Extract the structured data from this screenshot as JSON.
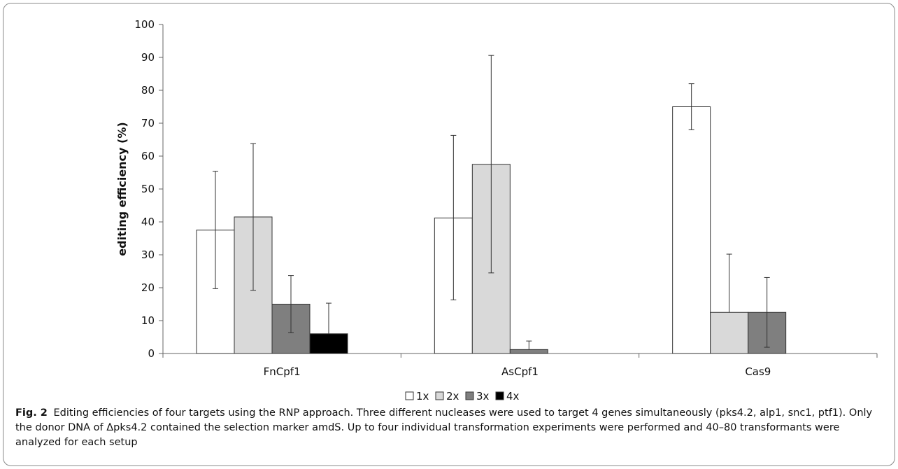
{
  "chart_data": {
    "type": "bar",
    "ylabel": "editing efficiency (%)",
    "xlabel": "",
    "ylim": [
      0,
      100
    ],
    "yticks": [
      0,
      10,
      20,
      30,
      40,
      50,
      60,
      70,
      80,
      90,
      100
    ],
    "categories": [
      "FnCpf1",
      "AsCpf1",
      "Cas9"
    ],
    "legend_position": "bottom",
    "grid": false,
    "series": [
      {
        "name": "1x",
        "color": "#ffffff",
        "values": [
          37.5,
          41.2,
          75.0
        ],
        "err_low": [
          19.7,
          16.3,
          68.0
        ],
        "err_high": [
          55.4,
          66.3,
          82.0
        ]
      },
      {
        "name": "2x",
        "color": "#d9d9d9",
        "values": [
          41.5,
          57.5,
          12.5
        ],
        "err_low": [
          19.2,
          24.5,
          null
        ],
        "err_high": [
          63.8,
          90.6,
          30.2
        ]
      },
      {
        "name": "3x",
        "color": "#7f7f7f",
        "values": [
          15.0,
          1.2,
          12.5
        ],
        "err_low": [
          6.3,
          null,
          1.9
        ],
        "err_high": [
          23.7,
          3.8,
          23.1
        ]
      },
      {
        "name": "4x",
        "color": "#000000",
        "values": [
          6.0,
          null,
          null
        ],
        "err_low": [
          null,
          null,
          null
        ],
        "err_high": [
          15.3,
          null,
          null
        ]
      }
    ]
  },
  "caption": {
    "label": "Fig. 2",
    "text": "Editing efficiencies of four targets using the RNP approach. Three different nucleases were used to target 4 genes simultaneously (pks4.2, alp1, snc1, ptf1). Only the donor DNA of Δpks4.2 contained the selection marker amdS. Up to four individual transformation experiments were performed and 40–80 transformants were analyzed for each setup"
  }
}
